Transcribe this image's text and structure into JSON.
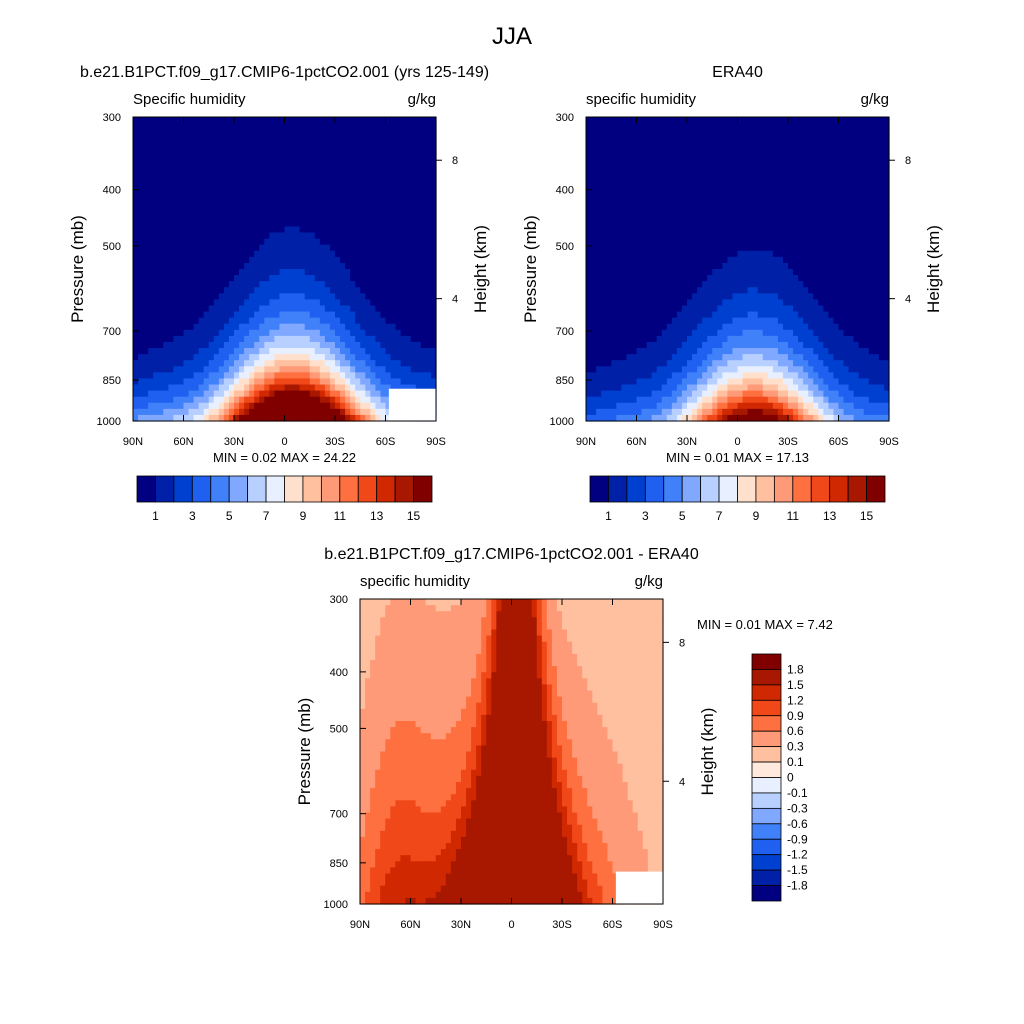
{
  "figure_title": "JJA",
  "colors": {
    "abs_scale": [
      "#000080",
      "#0020A8",
      "#0040D0",
      "#2060F0",
      "#4080F8",
      "#80A8FF",
      "#B8D0FF",
      "#E8F0FF",
      "#FFE0CC",
      "#FFC0A0",
      "#FF9A78",
      "#FF7040",
      "#F04818",
      "#D02800",
      "#A81800",
      "#800000"
    ],
    "diff_scale": [
      "#000080",
      "#0020A8",
      "#0040D0",
      "#2060F0",
      "#4080F8",
      "#80A8FF",
      "#B8D0FF",
      "#E8F0FF",
      "#FFFFFF",
      "#FFE8DC",
      "#FFC0A0",
      "#FF9A78",
      "#FF7040",
      "#F04818",
      "#D02800",
      "#A81800",
      "#800000"
    ]
  },
  "chart_data": [
    {
      "type": "heatmap",
      "title": "b.e21.B1PCT.f09_g17.CMIP6-1pctCO2.001 (yrs 125-149)",
      "variable": "Specific humidity",
      "units": "g/kg",
      "xlabel": "",
      "ylabel": "Pressure (mb)",
      "y2label": "Height (km)",
      "x_ticks": [
        "90N",
        "60N",
        "30N",
        "0",
        "30S",
        "60S",
        "90S"
      ],
      "y_ticks": [
        "300",
        "400",
        "500",
        "700",
        "850",
        "1000"
      ],
      "y2_ticks": [
        "8",
        "4"
      ],
      "y_scale": "log",
      "ylim": [
        1000,
        300
      ],
      "stats": "MIN =   0.02  MAX = 24.22",
      "min": 0.02,
      "max": 24.22,
      "colorbar_labels": [
        "1",
        "3",
        "5",
        "7",
        "9",
        "11",
        "13",
        "15"
      ],
      "levels": [
        1,
        2,
        3,
        4,
        5,
        6,
        7,
        8,
        9,
        10,
        11,
        12,
        13,
        14,
        15
      ],
      "peak_lat": -5,
      "surface_peak": 24.22,
      "land_mask": [
        {
          "lat": 62,
          "p": 880
        }
      ]
    },
    {
      "type": "heatmap",
      "title": "ERA40",
      "variable": "specific humidity",
      "units": "g/kg",
      "xlabel": "",
      "ylabel": "Pressure (mb)",
      "y2label": "Height (km)",
      "x_ticks": [
        "90N",
        "60N",
        "30N",
        "0",
        "30S",
        "60S",
        "90S"
      ],
      "y_ticks": [
        "300",
        "400",
        "500",
        "700",
        "850",
        "1000"
      ],
      "y2_ticks": [
        "8",
        "4"
      ],
      "y_scale": "log",
      "ylim": [
        1000,
        300
      ],
      "stats": "MIN =   0.01  MAX = 17.13",
      "min": 0.01,
      "max": 17.13,
      "colorbar_labels": [
        "1",
        "3",
        "5",
        "7",
        "9",
        "11",
        "13",
        "15"
      ],
      "levels": [
        1,
        2,
        3,
        4,
        5,
        6,
        7,
        8,
        9,
        10,
        11,
        12,
        13,
        14,
        15
      ],
      "peak_lat": -10,
      "surface_peak": 17.13
    },
    {
      "type": "heatmap",
      "title": "b.e21.B1PCT.f09_g17.CMIP6-1pctCO2.001 - ERA40",
      "variable": "specific humidity",
      "units": "g/kg",
      "xlabel": "",
      "ylabel": "Pressure (mb)",
      "y2label": "Height (km)",
      "x_ticks": [
        "90N",
        "60N",
        "30N",
        "0",
        "30S",
        "60S",
        "90S"
      ],
      "y_ticks": [
        "300",
        "400",
        "500",
        "700",
        "850",
        "1000"
      ],
      "y2_ticks": [
        "8",
        "4"
      ],
      "y_scale": "log",
      "ylim": [
        1000,
        300
      ],
      "stats": "MIN =   0.01  MAX =   7.42",
      "min": 0.01,
      "max": 7.42,
      "colorbar_labels": [
        "1.8",
        "1.5",
        "1.2",
        "0.9",
        "0.6",
        "0.3",
        "0.1",
        "0",
        "-0.1",
        "-0.3",
        "-0.6",
        "-0.9",
        "-1.2",
        "-1.5",
        "-1.8"
      ],
      "levels": [
        -1.8,
        -1.5,
        -1.2,
        -0.9,
        -0.6,
        -0.3,
        -0.1,
        0,
        0.1,
        0.3,
        0.6,
        0.9,
        1.2,
        1.5,
        1.8
      ],
      "land_mask": [
        {
          "lat": 62,
          "p": 880
        }
      ]
    }
  ]
}
